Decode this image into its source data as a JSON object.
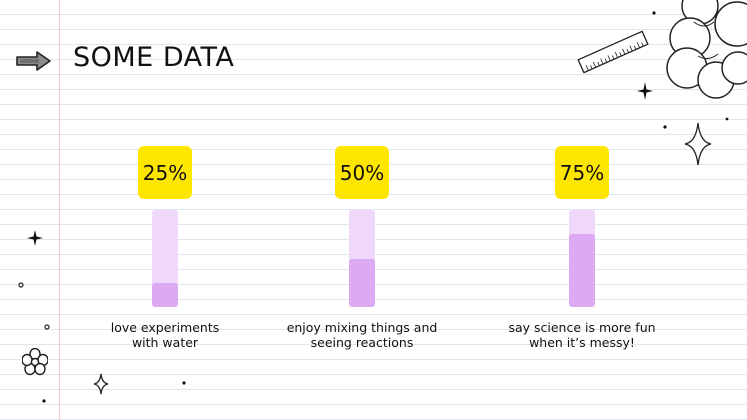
{
  "slide": {
    "title": "SOME DATA"
  },
  "stats": [
    {
      "label": "25%",
      "value": 25,
      "caption_line1": "love experiments",
      "caption_line2": "with water"
    },
    {
      "label": "50%",
      "value": 50,
      "caption_line1": "enjoy mixing things and",
      "caption_line2": "seeing reactions"
    },
    {
      "label": "75%",
      "value": 75,
      "caption_line1": "say science is more fun",
      "caption_line2": "when it’s messy!"
    }
  ],
  "colors": {
    "badge": "#ffe600",
    "bar_track": "#f0d8fb",
    "bar_fill": "#dcaaf2",
    "margin_line": "#f2c9d2",
    "rule_line": "#dfe6f2"
  },
  "icons": [
    "arrow-icon",
    "ruler-icon",
    "cloud-icon",
    "sparkle-icon",
    "flower-icon",
    "dot-icon"
  ]
}
